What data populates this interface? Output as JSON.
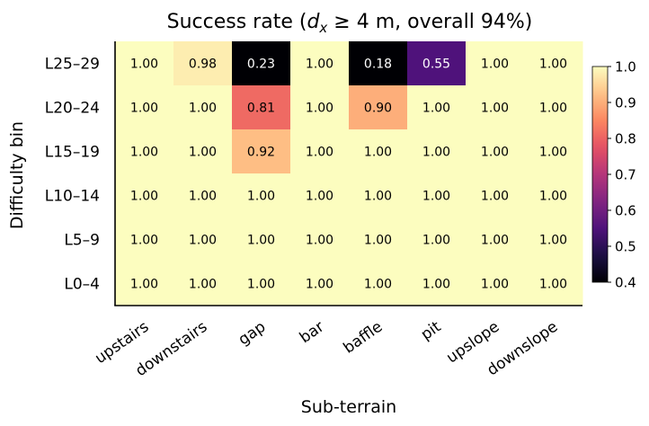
{
  "chart_data": {
    "type": "heatmap",
    "title_main": "Success rate  (",
    "title_math": "d",
    "title_sub": "x",
    "title_rest": " ≥ 4 m, overall 94%)",
    "xlabel": "Sub-terrain",
    "ylabel": "Difficulty bin",
    "x_categories": [
      "upstairs",
      "downstairs",
      "gap",
      "bar",
      "baffle",
      "pit",
      "upslope",
      "downslope"
    ],
    "y_categories": [
      "L25–29",
      "L20–24",
      "L15–19",
      "L10–14",
      "L5–9",
      "L0–4"
    ],
    "values": [
      [
        1.0,
        0.98,
        0.23,
        1.0,
        0.18,
        0.55,
        1.0,
        1.0
      ],
      [
        1.0,
        1.0,
        0.81,
        1.0,
        0.9,
        1.0,
        1.0,
        1.0
      ],
      [
        1.0,
        1.0,
        0.92,
        1.0,
        1.0,
        1.0,
        1.0,
        1.0
      ],
      [
        1.0,
        1.0,
        1.0,
        1.0,
        1.0,
        1.0,
        1.0,
        1.0
      ],
      [
        1.0,
        1.0,
        1.0,
        1.0,
        1.0,
        1.0,
        1.0,
        1.0
      ],
      [
        1.0,
        1.0,
        1.0,
        1.0,
        1.0,
        1.0,
        1.0,
        1.0
      ]
    ],
    "colormap": "magma",
    "vmin": 0.4,
    "vmax": 1.0,
    "colorbar_ticks": [
      "1.0",
      "0.9",
      "0.8",
      "0.7",
      "0.6",
      "0.5",
      "0.4"
    ]
  }
}
